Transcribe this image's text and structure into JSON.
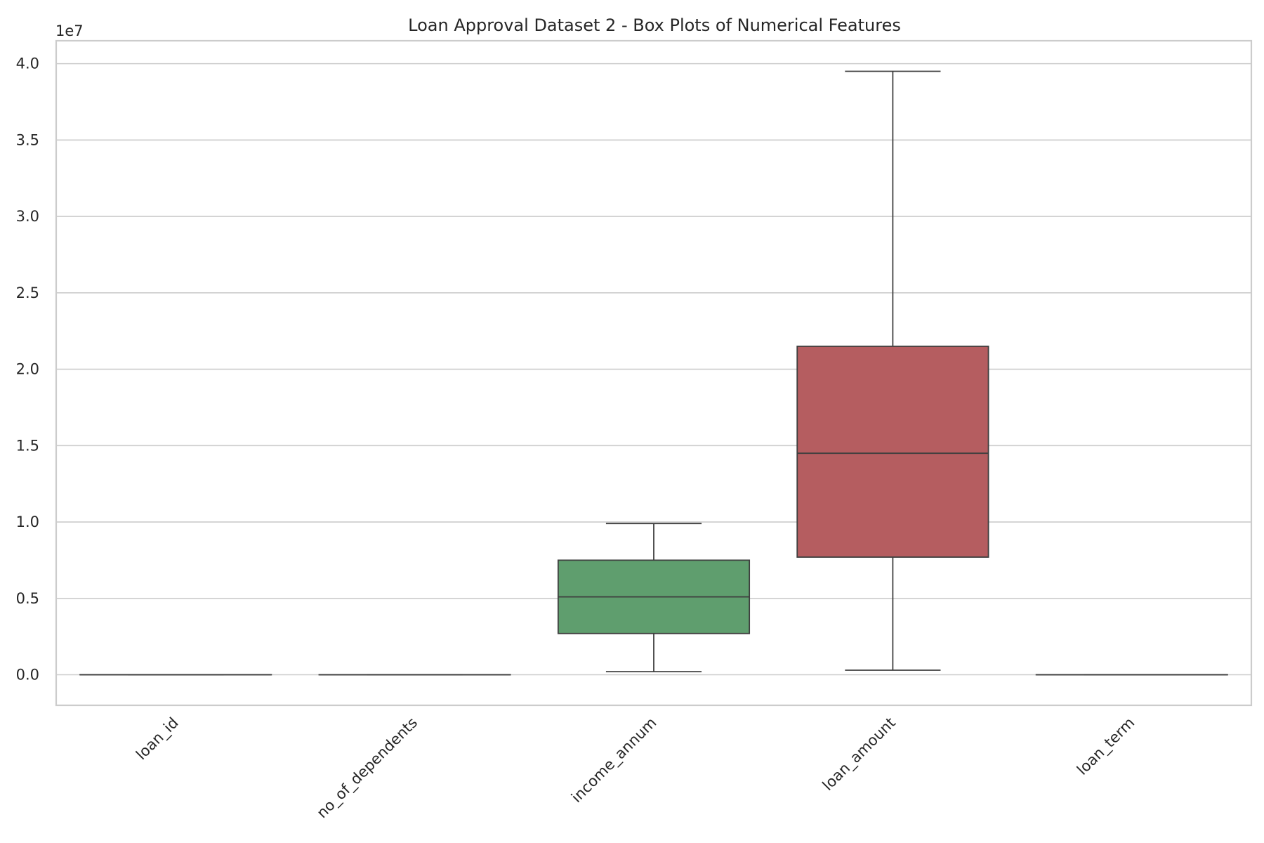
{
  "chart_data": {
    "type": "box",
    "title": "Loan Approval Dataset 2 - Box Plots of Numerical Features",
    "xlabel": "",
    "ylabel": "",
    "y_offset_label": "1e7",
    "y_scale_factor": 10000000,
    "ylim": [
      -0.2,
      4.15
    ],
    "y_ticks": [
      0.0,
      0.5,
      1.0,
      1.5,
      2.0,
      2.5,
      3.0,
      3.5,
      4.0
    ],
    "y_tick_labels": [
      "0.0",
      "0.5",
      "1.0",
      "1.5",
      "2.0",
      "2.5",
      "3.0",
      "3.5",
      "4.0"
    ],
    "grid": true,
    "categories": [
      "loan_id",
      "no_of_dependents",
      "income_annum",
      "loan_amount",
      "loan_term"
    ],
    "boxes": [
      {
        "category": "loan_id",
        "color": "#4c72b0",
        "whisker_low": 1,
        "q1": 1068,
        "median": 2135,
        "q3": 3202,
        "whisker_high": 4269
      },
      {
        "category": "no_of_dependents",
        "color": "#dd8452",
        "whisker_low": 0,
        "q1": 1,
        "median": 3,
        "q3": 4,
        "whisker_high": 5
      },
      {
        "category": "income_annum",
        "color": "#5f9e6e",
        "whisker_low": 200000,
        "q1": 2700000,
        "median": 5100000,
        "q3": 7500000,
        "whisker_high": 9900000
      },
      {
        "category": "loan_amount",
        "color": "#b55d60",
        "whisker_low": 300000,
        "q1": 7700000,
        "median": 14500000,
        "q3": 21500000,
        "whisker_high": 39500000
      },
      {
        "category": "loan_term",
        "color": "#8172b3",
        "whisker_low": 2,
        "q1": 6,
        "median": 10,
        "q3": 16,
        "whisker_high": 20
      }
    ]
  }
}
